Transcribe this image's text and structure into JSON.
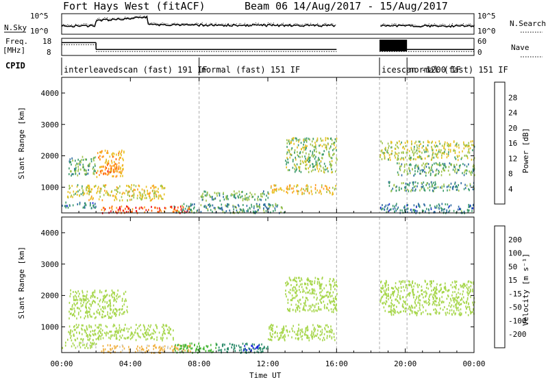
{
  "header": {
    "title": "Fort Hays West (fitACF)",
    "beam": "Beam 06",
    "dates": "14/Aug/2017 - 15/Aug/2017"
  },
  "labels": {
    "nsky": "N.Sky",
    "nsearch": "N.Search",
    "freq_line1": "Freq.",
    "freq_line2": "[MHz]",
    "nave": "Nave",
    "cpid": "CPID",
    "x_axis": "Time UT"
  },
  "ticks": {
    "noise_left": [
      "10^5",
      "10^0"
    ],
    "noise_right": [
      "10^5",
      "10^0"
    ],
    "freq_left": [
      "18",
      "8"
    ],
    "nave_right": [
      "60",
      "0"
    ],
    "slant_range": [
      "4000",
      "3000",
      "2000",
      "1000"
    ],
    "time": [
      "00:00",
      "04:00",
      "08:00",
      "12:00",
      "16:00",
      "20:00",
      "00:00"
    ]
  },
  "cpid_segments": [
    {
      "text": "interleavedscan (fast) 191 IF",
      "start_hour": 0.0
    },
    {
      "text": "normal (fast) 151 IF",
      "start_hour": 8.0
    },
    {
      "text": "icescan -1200 IF",
      "start_hour": 18.5
    },
    {
      "text": "normal (fast) 151 IF",
      "start_hour": 20.1
    }
  ],
  "power_scale": {
    "label": "Power [dB]",
    "ticks": [
      "28",
      "24",
      "20",
      "16",
      "12",
      "8",
      "4"
    ],
    "colors": [
      "#e8001a",
      "#ff5a00",
      "#ff9a20",
      "#e8c020",
      "#9ec34a",
      "#3a9a6a",
      "#2c6aa0",
      "#1a2ad8"
    ]
  },
  "velocity_scale": {
    "label": "Velocity [m s⁻¹]",
    "ticks": [
      "200",
      "100",
      "50",
      "15",
      "-15",
      "-50",
      "-100",
      "-200"
    ],
    "colors": [
      "#1a2ad8",
      "#3a5ac8",
      "#2a8a6a",
      "#4ab83a",
      "#a6d64a",
      "#c8c8c0",
      "#f0b040",
      "#ff8020",
      "#ff4010",
      "#e8001a"
    ]
  },
  "chart_data": {
    "type": "heatmap",
    "title": "Fort Hays West (fitACF)",
    "xlabel": "Time UT",
    "ylabel": "Slant Range [km]",
    "xlim": [
      0,
      24
    ],
    "ylim": [
      180,
      4500
    ],
    "data_gap_hours": [
      16.0,
      18.5
    ],
    "panels": [
      {
        "name": "Power [dB]",
        "colorbar_range": [
          0,
          30
        ],
        "echo_regions": [
          {
            "t": [
              0.4,
              2.0
            ],
            "r": [
              1400,
              2000
            ],
            "value": 10
          },
          {
            "t": [
              2.0,
              3.6
            ],
            "r": [
              1350,
              2200
            ],
            "value": 20
          },
          {
            "t": [
              2.2,
              3.2
            ],
            "r": [
              1500,
              1750
            ],
            "value": 24
          },
          {
            "t": [
              0.3,
              1.6
            ],
            "r": [
              700,
              1100
            ],
            "value": 14
          },
          {
            "t": [
              1.5,
              6.0
            ],
            "r": [
              600,
              1100
            ],
            "value": 16
          },
          {
            "t": [
              2.3,
              7.5
            ],
            "r": [
              200,
              420
            ],
            "value": 26
          },
          {
            "t": [
              0.0,
              2.0
            ],
            "r": [
              350,
              550
            ],
            "value": 6
          },
          {
            "t": [
              6.5,
              13.0
            ],
            "r": [
              200,
              500
            ],
            "value": 8
          },
          {
            "t": [
              8.0,
              12.0
            ],
            "r": [
              600,
              900
            ],
            "value": 10
          },
          {
            "t": [
              12.0,
              16.0
            ],
            "r": [
              800,
              1100
            ],
            "value": 18
          },
          {
            "t": [
              13.0,
              16.0
            ],
            "r": [
              1500,
              2600
            ],
            "value": 12
          },
          {
            "t": [
              18.5,
              24.0
            ],
            "r": [
              1900,
              2500
            ],
            "value": 14
          },
          {
            "t": [
              19.5,
              24.0
            ],
            "r": [
              1400,
              1800
            ],
            "value": 10
          },
          {
            "t": [
              19.0,
              24.0
            ],
            "r": [
              900,
              1200
            ],
            "value": 8
          },
          {
            "t": [
              18.5,
              24.0
            ],
            "r": [
              200,
              500
            ],
            "value": 6
          }
        ]
      },
      {
        "name": "Velocity [m s⁻¹]",
        "colorbar_range": [
          -200,
          200
        ],
        "echo_regions": [
          {
            "t": [
              0.4,
              3.8
            ],
            "r": [
              1300,
              2200
            ],
            "value": 0
          },
          {
            "t": [
              0.3,
              6.5
            ],
            "r": [
              600,
              1100
            ],
            "value": 0
          },
          {
            "t": [
              2.3,
              7.5
            ],
            "r": [
              200,
              450
            ],
            "value": -60
          },
          {
            "t": [
              0.0,
              2.0
            ],
            "r": [
              350,
              550
            ],
            "value": -5
          },
          {
            "t": [
              6.5,
              9.0
            ],
            "r": [
              200,
              500
            ],
            "value": 30
          },
          {
            "t": [
              9.0,
              12.0
            ],
            "r": [
              200,
              500
            ],
            "value": 80
          },
          {
            "t": [
              10.5,
              11.6
            ],
            "r": [
              250,
              450
            ],
            "value": 220
          },
          {
            "t": [
              12.0,
              16.0
            ],
            "r": [
              600,
              1100
            ],
            "value": 0
          },
          {
            "t": [
              13.0,
              16.0
            ],
            "r": [
              1500,
              2600
            ],
            "value": 0
          },
          {
            "t": [
              18.5,
              24.0
            ],
            "r": [
              1400,
              2500
            ],
            "value": 0
          }
        ]
      }
    ],
    "frequency_mhz": [
      {
        "t": [
          0.0,
          2.0
        ],
        "value": 15.5
      },
      {
        "t": [
          2.0,
          16.0
        ],
        "value": 11.5
      },
      {
        "t": [
          18.5,
          24.0
        ],
        "value": 11.5
      }
    ]
  }
}
